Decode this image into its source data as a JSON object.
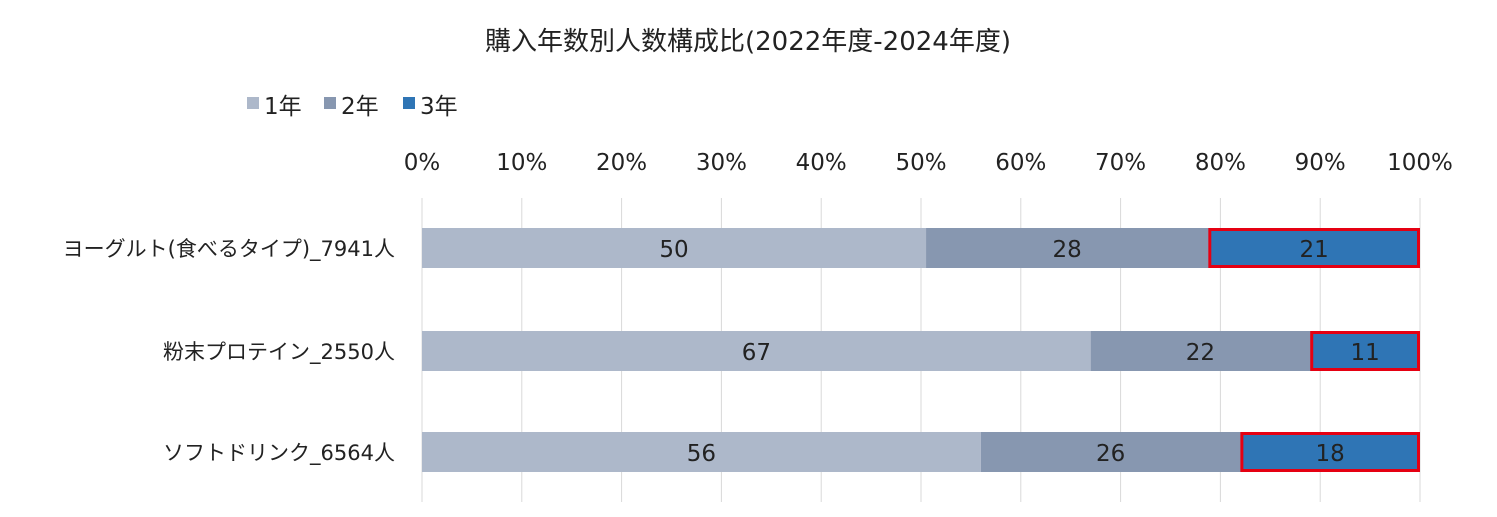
{
  "title": "購入年数別人数構成比(2022年度-2024年度)",
  "colors": {
    "1年": "#adb8ca",
    "2年": "#8797b0",
    "3年": "#2f75b5",
    "highlight": "#e50012",
    "grid": "#d9d9d9"
  },
  "chart_data": {
    "type": "bar",
    "orientation": "horizontal",
    "stacked": "percent",
    "title": "購入年数別人数構成比(2022年度-2024年度)",
    "categories": [
      "ヨーグルト(食べるタイプ)_7941人",
      "粉末プロテイン_2550人",
      "ソフトドリンク_6564人"
    ],
    "series": [
      {
        "name": "1年",
        "values": [
          50,
          67,
          56
        ]
      },
      {
        "name": "2年",
        "values": [
          28,
          22,
          26
        ]
      },
      {
        "name": "3年",
        "values": [
          21,
          11,
          18
        ]
      }
    ],
    "xlim": [
      0,
      100
    ],
    "x_ticks": [
      "0%",
      "10%",
      "20%",
      "30%",
      "40%",
      "50%",
      "60%",
      "70%",
      "80%",
      "90%",
      "100%"
    ],
    "grid": true,
    "legend_position": "top-left",
    "highlighted_series": "3年",
    "data_labels": true
  }
}
